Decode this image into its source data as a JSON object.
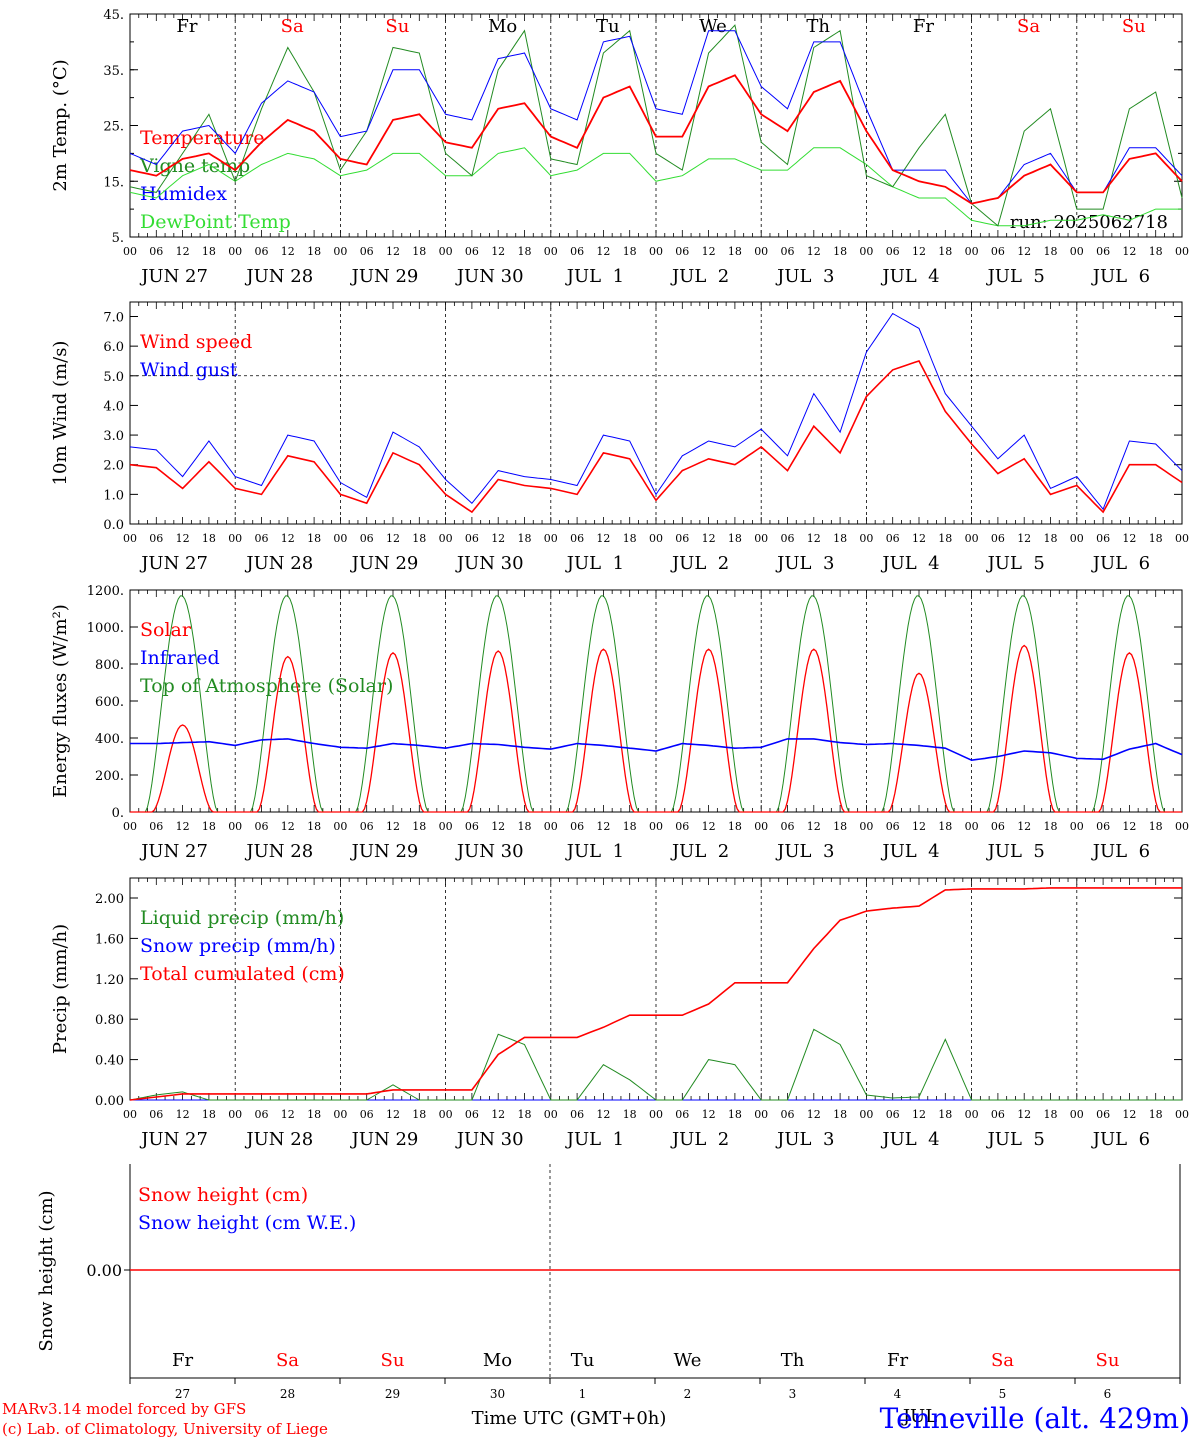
{
  "colors": {
    "red": "#ff0000",
    "darkgreen": "#228b22",
    "blue": "#0000ff",
    "lightgreen": "#33dd33",
    "black": "#000000"
  },
  "chart_data": [
    {
      "type": "line",
      "ylabel": "2m Temp. (°C)",
      "yticks": [
        "45.",
        "35.",
        "25.",
        "15.",
        "5."
      ],
      "ylim": [
        5,
        45
      ],
      "run_label": "run: 2025062718",
      "legend": [
        {
          "name": "Temperature",
          "color": "#ff0000"
        },
        {
          "name": "Vigne temp",
          "color": "#228b22"
        },
        {
          "name": "Humidex",
          "color": "#0000ff"
        },
        {
          "name": "DewPoint Temp",
          "color": "#33dd33"
        }
      ],
      "day_labels": [
        {
          "label": "Fr",
          "color": "#000000"
        },
        {
          "label": "Sa",
          "color": "#ff0000"
        },
        {
          "label": "Su",
          "color": "#ff0000"
        },
        {
          "label": "Mo",
          "color": "#000000"
        },
        {
          "label": "Tu",
          "color": "#000000"
        },
        {
          "label": "We",
          "color": "#000000"
        },
        {
          "label": "Th",
          "color": "#000000"
        },
        {
          "label": "Fr",
          "color": "#000000"
        },
        {
          "label": "Sa",
          "color": "#ff0000"
        },
        {
          "label": "Su",
          "color": "#ff0000"
        }
      ],
      "x_hours": [
        0,
        6,
        12,
        18,
        24,
        30,
        36,
        42,
        48,
        54,
        60,
        66,
        72,
        78,
        84,
        90,
        96,
        102,
        108,
        114,
        120,
        126,
        132,
        138,
        144,
        150,
        156,
        162,
        168,
        174,
        180,
        186,
        192,
        198,
        204,
        210,
        216,
        222,
        228,
        234,
        240
      ],
      "series": [
        {
          "name": "Temperature",
          "color": "#ff0000",
          "values": [
            17,
            16,
            19,
            20,
            17,
            22,
            26,
            24,
            19,
            18,
            26,
            27,
            22,
            21,
            28,
            29,
            23,
            21,
            30,
            32,
            23,
            23,
            32,
            34,
            27,
            24,
            31,
            33,
            24,
            17,
            15,
            14,
            11,
            12,
            16,
            18,
            13,
            13,
            19,
            20,
            15
          ]
        },
        {
          "name": "Vigne temp",
          "color": "#228b22",
          "values": [
            14,
            13,
            20,
            27,
            15,
            28,
            39,
            31,
            17,
            24,
            39,
            38,
            20,
            16,
            35,
            42,
            19,
            18,
            38,
            42,
            20,
            17,
            38,
            43,
            22,
            18,
            39,
            42,
            16,
            14,
            21,
            27,
            11,
            7,
            24,
            28,
            10,
            10,
            28,
            31,
            12
          ]
        },
        {
          "name": "Humidex",
          "color": "#0000ff",
          "values": [
            20,
            18,
            24,
            25,
            20,
            29,
            33,
            31,
            23,
            24,
            35,
            35,
            27,
            26,
            37,
            38,
            28,
            26,
            40,
            41,
            28,
            27,
            42,
            42,
            32,
            28,
            40,
            40,
            28,
            17,
            17,
            17,
            11,
            12,
            18,
            20,
            13,
            13,
            21,
            21,
            16
          ]
        },
        {
          "name": "DewPoint Temp",
          "color": "#33dd33",
          "values": [
            13,
            12,
            16,
            18,
            15,
            18,
            20,
            19,
            16,
            17,
            20,
            20,
            16,
            16,
            20,
            21,
            16,
            17,
            20,
            20,
            15,
            16,
            19,
            19,
            17,
            17,
            21,
            21,
            18,
            14,
            12,
            12,
            8,
            7,
            7,
            8,
            8,
            9,
            8,
            10,
            10
          ]
        }
      ]
    },
    {
      "type": "line",
      "ylabel": "10m Wind (m/s)",
      "yticks": [
        "7.0",
        "6.0",
        "5.0",
        "4.0",
        "3.0",
        "2.0",
        "1.0",
        "0.0"
      ],
      "ylim": [
        0,
        7.5
      ],
      "legend": [
        {
          "name": "Wind speed",
          "color": "#ff0000"
        },
        {
          "name": "Wind gust",
          "color": "#0000ff"
        }
      ],
      "x_hours": [
        0,
        6,
        12,
        18,
        24,
        30,
        36,
        42,
        48,
        54,
        60,
        66,
        72,
        78,
        84,
        90,
        96,
        102,
        108,
        114,
        120,
        126,
        132,
        138,
        144,
        150,
        156,
        162,
        168,
        174,
        180,
        186,
        192,
        198,
        204,
        210,
        216,
        222,
        228,
        234,
        240
      ],
      "series": [
        {
          "name": "Wind speed",
          "color": "#ff0000",
          "values": [
            2.0,
            1.9,
            1.2,
            2.1,
            1.2,
            1.0,
            2.3,
            2.1,
            1.0,
            0.7,
            2.4,
            2.0,
            1.0,
            0.4,
            1.5,
            1.3,
            1.2,
            1.0,
            2.4,
            2.2,
            0.8,
            1.8,
            2.2,
            2.0,
            2.6,
            1.8,
            3.3,
            2.4,
            4.3,
            5.2,
            5.5,
            3.8,
            2.7,
            1.7,
            2.2,
            1.0,
            1.3,
            0.4,
            2.0,
            2.0,
            1.4
          ]
        },
        {
          "name": "Wind gust",
          "color": "#0000ff",
          "values": [
            2.6,
            2.5,
            1.6,
            2.8,
            1.6,
            1.3,
            3.0,
            2.8,
            1.4,
            0.9,
            3.1,
            2.6,
            1.5,
            0.7,
            1.8,
            1.6,
            1.5,
            1.3,
            3.0,
            2.8,
            1.0,
            2.3,
            2.8,
            2.6,
            3.2,
            2.3,
            4.4,
            3.1,
            5.8,
            7.1,
            6.6,
            4.4,
            3.3,
            2.2,
            3.0,
            1.2,
            1.6,
            0.5,
            2.8,
            2.7,
            1.8
          ]
        }
      ]
    },
    {
      "type": "line",
      "ylabel": "Energy fluxes (W/m²)",
      "yticks": [
        "1200.",
        "1000.",
        "800.",
        "600.",
        "400.",
        "200.",
        "0."
      ],
      "ylim": [
        0,
        1200
      ],
      "legend": [
        {
          "name": "Solar",
          "color": "#ff0000"
        },
        {
          "name": "Infrared",
          "color": "#0000ff"
        },
        {
          "name": "Top of Atmosphere (Solar)",
          "color": "#228b22"
        }
      ],
      "solar_peaks": [
        470,
        840,
        860,
        870,
        880,
        880,
        880,
        750,
        900,
        860
      ],
      "toa_peak": 1170,
      "infrared": [
        370,
        370,
        375,
        380,
        360,
        390,
        395,
        370,
        350,
        345,
        370,
        360,
        345,
        370,
        365,
        350,
        340,
        370,
        360,
        345,
        330,
        370,
        360,
        345,
        350,
        395,
        395,
        375,
        365,
        370,
        360,
        345,
        280,
        300,
        330,
        320,
        290,
        285,
        340,
        370,
        310
      ]
    },
    {
      "type": "line",
      "ylabel": "Precip (mm/h)",
      "yticks": [
        "2.00",
        "1.60",
        "1.20",
        "0.80",
        "0.40",
        "0.00"
      ],
      "ylim": [
        0,
        2.2
      ],
      "legend": [
        {
          "name": "Liquid precip (mm/h)",
          "color": "#228b22"
        },
        {
          "name": "Snow precip (mm/h)",
          "color": "#0000ff"
        },
        {
          "name": "Total cumulated (cm)",
          "color": "#ff0000"
        }
      ],
      "x_hours": [
        0,
        6,
        12,
        18,
        24,
        30,
        36,
        42,
        48,
        54,
        60,
        66,
        72,
        78,
        84,
        90,
        96,
        102,
        108,
        114,
        120,
        126,
        132,
        138,
        144,
        150,
        156,
        162,
        168,
        174,
        180,
        186,
        192,
        198,
        204,
        210,
        216,
        222,
        228,
        234,
        240
      ],
      "series": [
        {
          "name": "Liquid precip (mm/h)",
          "color": "#228b22",
          "values": [
            0,
            0.05,
            0.08,
            0,
            0,
            0,
            0,
            0,
            0,
            0,
            0.15,
            0,
            0,
            0,
            0.65,
            0.55,
            0,
            0,
            0.35,
            0.2,
            0,
            0,
            0.4,
            0.35,
            0,
            0,
            0.7,
            0.55,
            0.05,
            0.02,
            0.03,
            0.6,
            0,
            0,
            0,
            0,
            0,
            0,
            0,
            0,
            0
          ]
        },
        {
          "name": "Snow precip (mm/h)",
          "color": "#0000ff",
          "values": [
            0,
            0,
            0,
            0,
            0,
            0,
            0,
            0,
            0,
            0,
            0,
            0,
            0,
            0,
            0,
            0,
            0,
            0,
            0,
            0,
            0,
            0,
            0,
            0,
            0,
            0,
            0,
            0,
            0,
            0,
            0,
            0,
            0,
            0,
            0,
            0,
            0,
            0,
            0,
            0,
            0
          ]
        },
        {
          "name": "Total cumulated (cm)",
          "color": "#ff0000",
          "values": [
            0,
            0.03,
            0.06,
            0.06,
            0.06,
            0.06,
            0.06,
            0.06,
            0.06,
            0.06,
            0.1,
            0.1,
            0.1,
            0.1,
            0.45,
            0.62,
            0.62,
            0.62,
            0.72,
            0.84,
            0.84,
            0.84,
            0.95,
            1.16,
            1.16,
            1.16,
            1.5,
            1.78,
            1.87,
            1.9,
            1.92,
            2.08,
            2.09,
            2.09,
            2.09,
            2.1,
            2.1,
            2.1,
            2.1,
            2.1,
            2.1
          ]
        }
      ]
    },
    {
      "type": "line",
      "ylabel": "Snow height (cm)",
      "yticks": [
        "0.00"
      ],
      "legend": [
        {
          "name": "Snow height (cm)",
          "color": "#ff0000"
        },
        {
          "name": "Snow height (cm W.E.)",
          "color": "#0000ff"
        }
      ],
      "day_labels": [
        {
          "label": "Fr",
          "color": "#000000"
        },
        {
          "label": "Sa",
          "color": "#ff0000"
        },
        {
          "label": "Su",
          "color": "#ff0000"
        },
        {
          "label": "Mo",
          "color": "#000000"
        },
        {
          "label": "Tu",
          "color": "#000000"
        },
        {
          "label": "We",
          "color": "#000000"
        },
        {
          "label": "Th",
          "color": "#000000"
        },
        {
          "label": "Fr",
          "color": "#000000"
        },
        {
          "label": "Sa",
          "color": "#ff0000"
        },
        {
          "label": "Su",
          "color": "#ff0000"
        }
      ],
      "day_numbers": [
        "27",
        "28",
        "29",
        "30",
        "1",
        "2",
        "3",
        "4",
        "5",
        "6"
      ],
      "xlabel": "Time UTC (GMT+0h)",
      "month_label": "JUL"
    }
  ],
  "shared_axis": {
    "hour_labels": [
      "00",
      "06",
      "12",
      "18"
    ],
    "end_hour_label": "00",
    "dates": [
      "JUN 27",
      "JUN 28",
      "JUN 29",
      "JUN 30",
      "JUL  1",
      "JUL  2",
      "JUL  3",
      "JUL  4",
      "JUL  5",
      "JUL  6"
    ]
  },
  "footer": {
    "model": "MARv3.14 model forced by GFS",
    "credit": "(c) Lab. of Climatology, University of Liege",
    "station": "Tenneville (alt. 429m)"
  }
}
